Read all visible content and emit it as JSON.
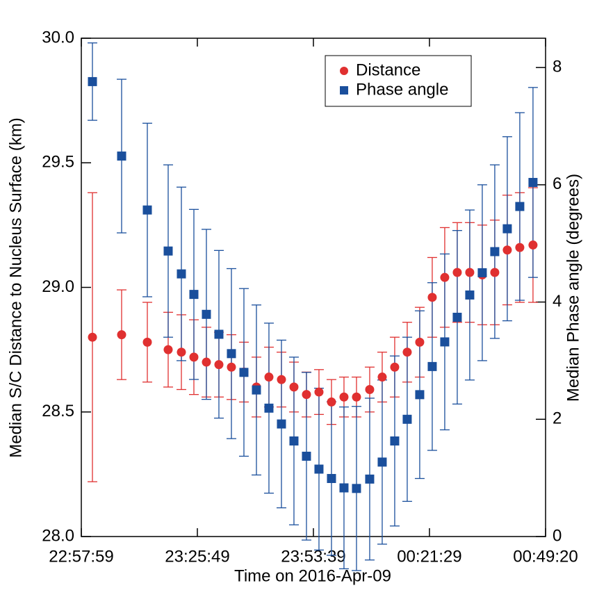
{
  "chart_data": {
    "type": "scatter",
    "x_label": "Time on 2016-Apr-09",
    "y_label": "Median S/C Distance to Nucleus Surface (km)",
    "y2_label": "Median Phase angle (degrees)",
    "x": [
      "23:00:39",
      "23:07:39",
      "23:13:49",
      "23:18:49",
      "23:21:59",
      "23:24:59",
      "23:27:59",
      "23:30:59",
      "23:33:59",
      "23:36:59",
      "23:39:59",
      "23:42:59",
      "23:45:59",
      "23:48:59",
      "23:51:59",
      "23:54:59",
      "23:57:59",
      "00:00:59",
      "00:03:59",
      "00:07:09",
      "00:10:09",
      "00:13:09",
      "00:16:09",
      "00:19:09",
      "00:22:09",
      "00:25:09",
      "00:28:09",
      "00:31:09",
      "00:34:09",
      "00:37:09",
      "00:40:09",
      "00:43:09",
      "00:46:19"
    ],
    "xlim": [
      "22:57:59",
      "00:49:20"
    ],
    "xticks": [
      "22:57:59",
      "23:25:49",
      "23:53:39",
      "00:21:29",
      "00:49:20"
    ],
    "ylim": [
      28,
      30
    ],
    "yticks": [
      {
        "value": 28,
        "label": "28.0"
      },
      {
        "value": 28.5,
        "label": "28.5"
      },
      {
        "value": 29,
        "label": "29.0"
      },
      {
        "value": 29.5,
        "label": "29.5"
      },
      {
        "value": 30,
        "label": "30.0"
      }
    ],
    "y2lim": [
      0,
      8.5
    ],
    "y2ticks": [
      0,
      2,
      4,
      6,
      8
    ],
    "legend": "upper right",
    "series": [
      {
        "name": "Distance",
        "color": "#e03030",
        "marker": "circle",
        "values": [
          28.8,
          28.81,
          28.78,
          28.75,
          28.74,
          28.72,
          28.7,
          28.69,
          28.68,
          28.66,
          28.6,
          28.64,
          28.63,
          28.6,
          28.57,
          28.58,
          28.54,
          28.56,
          28.56,
          28.59,
          28.64,
          28.68,
          28.74,
          28.78,
          28.96,
          29.04,
          29.06,
          29.06,
          29.05,
          29.06,
          29.15,
          29.16,
          29.17
        ],
        "errors": [
          0.58,
          0.18,
          0.16,
          0.15,
          0.15,
          0.15,
          0.14,
          0.13,
          0.13,
          0.12,
          0.12,
          0.12,
          0.11,
          0.1,
          0.09,
          0.09,
          0.09,
          0.08,
          0.08,
          0.09,
          0.1,
          0.12,
          0.12,
          0.14,
          0.16,
          0.2,
          0.2,
          0.2,
          0.2,
          0.21,
          0.22,
          0.22,
          0.23
        ]
      },
      {
        "name": "Phase angle",
        "color": "#1a4f9c",
        "marker": "square",
        "axis": "y2",
        "values": [
          7.76,
          6.49,
          5.57,
          4.87,
          4.48,
          4.13,
          3.79,
          3.45,
          3.12,
          2.8,
          2.5,
          2.19,
          1.92,
          1.63,
          1.37,
          1.15,
          0.99,
          0.83,
          0.82,
          0.98,
          1.27,
          1.63,
          2.0,
          2.42,
          2.9,
          3.32,
          3.74,
          4.12,
          4.5,
          4.86,
          5.25,
          5.63,
          6.04
        ],
        "errors": [
          0.66,
          1.31,
          1.48,
          1.47,
          1.48,
          1.45,
          1.45,
          1.43,
          1.45,
          1.43,
          1.45,
          1.45,
          1.43,
          1.43,
          1.43,
          1.38,
          1.31,
          1.38,
          1.4,
          1.38,
          1.4,
          1.45,
          1.4,
          1.43,
          1.43,
          1.5,
          1.48,
          1.45,
          1.5,
          1.48,
          1.57,
          1.6,
          1.62
        ]
      }
    ]
  }
}
